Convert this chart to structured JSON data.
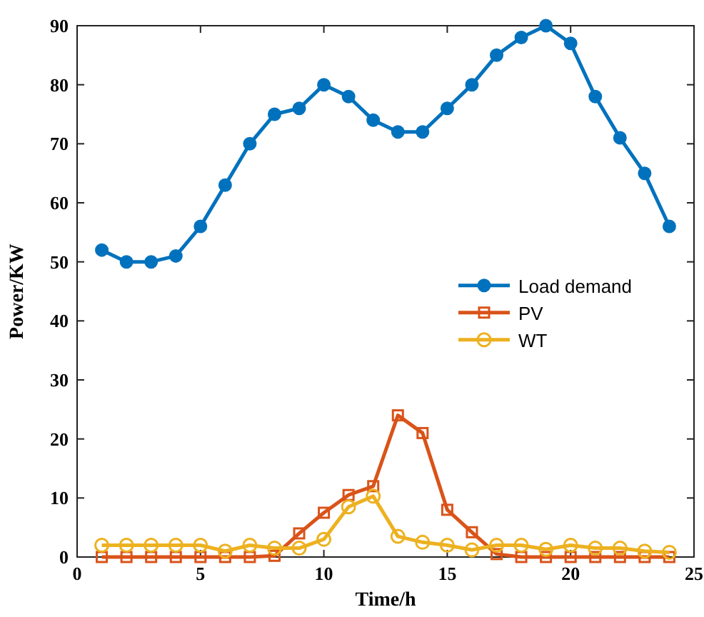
{
  "chart_data": {
    "type": "line",
    "xlabel": "Time/h",
    "ylabel": "Power/KW",
    "x": [
      1,
      2,
      3,
      4,
      5,
      6,
      7,
      8,
      9,
      10,
      11,
      12,
      13,
      14,
      15,
      16,
      17,
      18,
      19,
      20,
      21,
      22,
      23,
      24
    ],
    "series": [
      {
        "name": "Load demand",
        "color": "#0072bd",
        "marker": "circle",
        "values": [
          52,
          50,
          50,
          51,
          56,
          63,
          70,
          75,
          76,
          80,
          78,
          74,
          72,
          72,
          76,
          80,
          85,
          88,
          90,
          87,
          78,
          71,
          65,
          56
        ]
      },
      {
        "name": "PV",
        "color": "#d95319",
        "marker": "square",
        "values": [
          0,
          0,
          0,
          0,
          0,
          0,
          0,
          0.2,
          4,
          7.5,
          10.5,
          12,
          24,
          21,
          8,
          4.2,
          0.5,
          0,
          0,
          0,
          0,
          0,
          0,
          0
        ]
      },
      {
        "name": "WT",
        "color": "#edb120",
        "marker": "circle",
        "values": [
          2,
          2,
          2,
          2,
          2,
          1,
          2,
          1.5,
          1.5,
          3,
          8.5,
          10.3,
          3.5,
          2.5,
          2,
          1.2,
          2,
          2,
          1.3,
          2,
          1.5,
          1.5,
          1,
          0.8
        ]
      }
    ],
    "xlim": [
      0,
      25
    ],
    "xticks": [
      0,
      5,
      10,
      15,
      20,
      25
    ],
    "ylim": [
      0,
      90
    ],
    "yticks": [
      0,
      10,
      20,
      30,
      40,
      50,
      60,
      70,
      80,
      90
    ],
    "legend": "right",
    "grid": false
  }
}
